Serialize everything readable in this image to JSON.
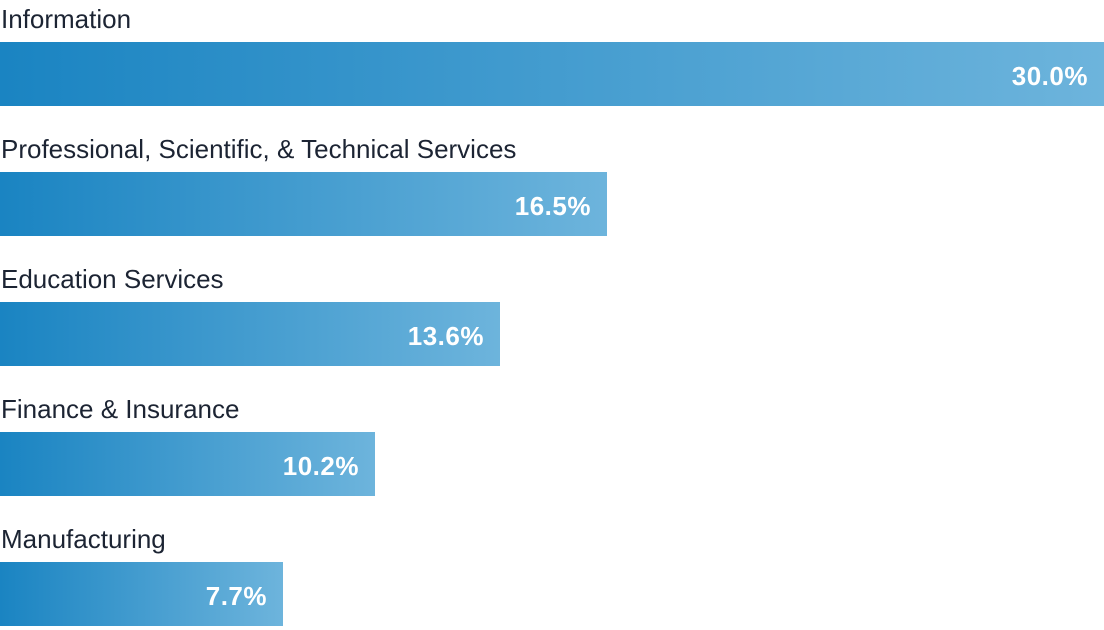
{
  "chart_data": {
    "type": "bar",
    "orientation": "horizontal",
    "categories": [
      "Information",
      "Professional, Scientific, & Technical Services",
      "Education Services",
      "Finance & Insurance",
      "Manufacturing"
    ],
    "values": [
      30.0,
      16.5,
      13.6,
      10.2,
      7.7
    ],
    "value_labels": [
      "30.0%",
      "16.5%",
      "13.6%",
      "10.2%",
      "7.7%"
    ],
    "unit": "%",
    "xlim": [
      0,
      30.0
    ],
    "grid": false,
    "legend": "none",
    "colors": {
      "bar_start": "#1a84c2",
      "bar_end": "#6db4dc",
      "label": "#1c2433",
      "value_text": "#ffffff"
    }
  }
}
